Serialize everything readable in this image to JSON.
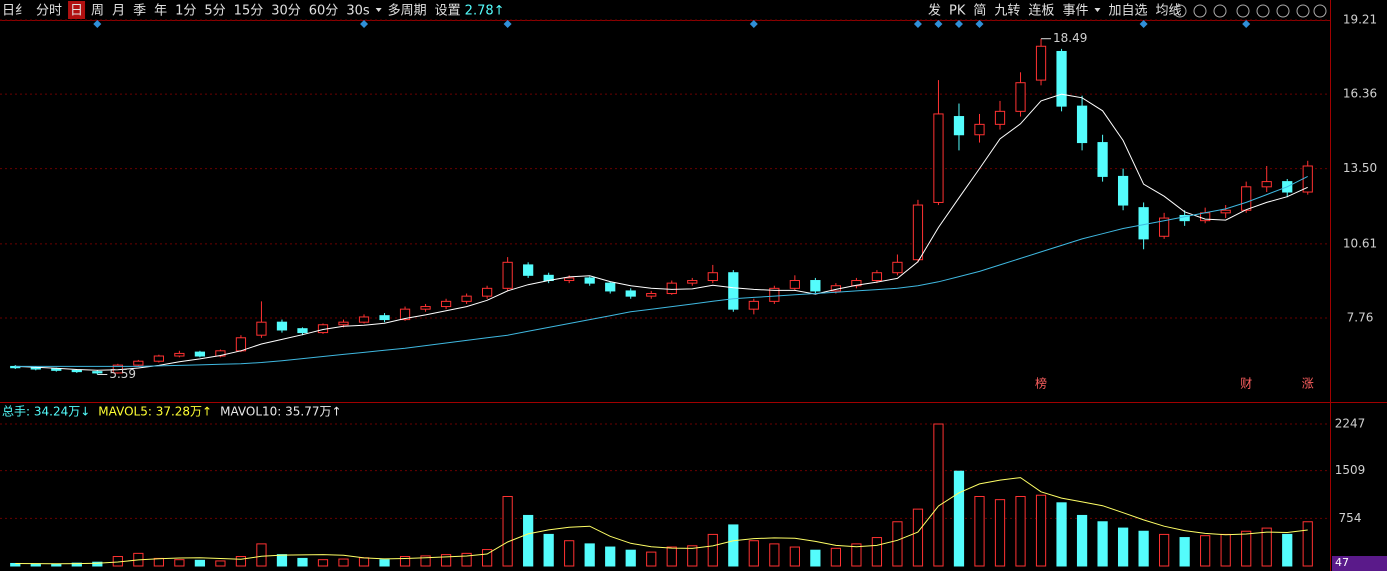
{
  "toolbar": {
    "left": [
      "日纟",
      "分时",
      "日",
      "周",
      "月",
      "季",
      "年",
      "1分",
      "5分",
      "15分",
      "30分",
      "60分",
      "30s",
      "多周期",
      "设置"
    ],
    "partial": "2.78↑",
    "right": [
      "发",
      "PK",
      "简",
      "九转",
      "连板",
      "事件",
      "加自选",
      "均线"
    ]
  },
  "chart_data": [
    {
      "type": "candlestick",
      "up_color": "#ff3232",
      "down_color": "#54fcfc",
      "grid": true,
      "open": [
        5.9,
        5.85,
        5.8,
        5.75,
        5.7,
        5.65,
        5.95,
        6.1,
        6.3,
        6.45,
        6.3,
        6.5,
        7.1,
        7.6,
        7.35,
        7.2,
        7.5,
        7.6,
        7.85,
        7.7,
        8.1,
        8.2,
        8.4,
        8.6,
        8.9,
        9.8,
        9.4,
        9.2,
        9.3,
        9.1,
        8.8,
        8.6,
        8.7,
        9.1,
        9.2,
        9.5,
        8.1,
        8.4,
        8.9,
        9.2,
        8.8,
        9.0,
        9.2,
        9.5,
        10.0,
        12.2,
        15.5,
        14.8,
        15.2,
        15.7,
        16.9,
        18.0,
        15.9,
        14.5,
        13.2,
        12.0,
        10.9,
        11.7,
        11.5,
        11.8,
        11.9,
        12.8,
        13.0,
        12.6
      ],
      "high": [
        5.95,
        5.9,
        5.85,
        5.8,
        5.75,
        6.0,
        6.15,
        6.35,
        6.5,
        6.5,
        6.55,
        7.1,
        8.4,
        7.7,
        7.4,
        7.55,
        7.7,
        7.9,
        7.95,
        8.2,
        8.3,
        8.5,
        8.7,
        9.0,
        10.1,
        9.9,
        9.5,
        9.4,
        9.35,
        9.15,
        8.9,
        8.8,
        9.2,
        9.3,
        9.8,
        9.6,
        8.5,
        9.0,
        9.4,
        9.3,
        9.1,
        9.3,
        9.6,
        10.2,
        12.3,
        16.9,
        16.0,
        15.6,
        16.1,
        17.2,
        18.49,
        18.1,
        16.3,
        14.8,
        13.5,
        12.2,
        11.8,
        11.9,
        12.0,
        12.1,
        13.0,
        13.6,
        13.1,
        13.8
      ],
      "low": [
        5.8,
        5.75,
        5.7,
        5.65,
        5.59,
        5.62,
        5.9,
        6.05,
        6.25,
        6.25,
        6.25,
        6.45,
        7.0,
        7.2,
        7.1,
        7.15,
        7.4,
        7.55,
        7.6,
        7.65,
        8.0,
        8.1,
        8.3,
        8.5,
        8.8,
        9.3,
        9.1,
        9.1,
        9.0,
        8.7,
        8.5,
        8.5,
        8.65,
        9.0,
        9.1,
        8.0,
        7.9,
        8.3,
        8.8,
        8.7,
        8.7,
        8.9,
        9.1,
        9.4,
        9.9,
        12.1,
        14.2,
        14.5,
        15.0,
        15.5,
        16.7,
        15.7,
        14.2,
        13.0,
        11.9,
        10.4,
        10.8,
        11.3,
        11.4,
        11.6,
        11.8,
        12.6,
        12.4,
        12.5
      ],
      "close": [
        5.85,
        5.8,
        5.75,
        5.7,
        5.65,
        5.95,
        6.1,
        6.3,
        6.4,
        6.3,
        6.5,
        7.0,
        7.6,
        7.3,
        7.2,
        7.5,
        7.6,
        7.8,
        7.7,
        8.1,
        8.2,
        8.4,
        8.6,
        8.9,
        9.9,
        9.4,
        9.2,
        9.3,
        9.1,
        8.8,
        8.6,
        8.7,
        9.1,
        9.2,
        9.5,
        8.1,
        8.4,
        8.9,
        9.2,
        8.8,
        9.0,
        9.2,
        9.5,
        9.9,
        12.1,
        15.6,
        14.8,
        15.2,
        15.7,
        16.8,
        18.2,
        15.9,
        14.5,
        13.2,
        12.1,
        10.8,
        11.6,
        11.5,
        11.8,
        11.9,
        12.8,
        13.0,
        12.6,
        13.6
      ],
      "lines": [
        {
          "color": "#ffffff",
          "values": [
            5.9,
            5.87,
            5.83,
            5.78,
            5.75,
            5.77,
            5.84,
            5.94,
            6.08,
            6.19,
            6.32,
            6.5,
            6.76,
            6.94,
            7.12,
            7.32,
            7.44,
            7.48,
            7.56,
            7.74,
            7.88,
            8.04,
            8.2,
            8.44,
            8.8,
            9.04,
            9.2,
            9.34,
            9.38,
            9.16,
            9.0,
            8.9,
            8.86,
            8.88,
            9.02,
            8.92,
            8.86,
            8.82,
            8.82,
            8.68,
            8.86,
            9.02,
            9.14,
            9.28,
            9.92,
            11.24,
            12.38,
            13.5,
            14.64,
            15.22,
            16.1,
            16.36,
            16.22,
            15.72,
            14.58,
            12.9,
            12.44,
            11.84,
            11.56,
            11.52,
            11.92,
            12.2,
            12.42,
            12.78
          ]
        },
        {
          "color": "#3fb8e0",
          "values": [
            5.9,
            5.9,
            5.9,
            5.9,
            5.9,
            5.9,
            5.9,
            5.92,
            5.94,
            5.96,
            5.98,
            6.0,
            6.05,
            6.12,
            6.2,
            6.28,
            6.36,
            6.44,
            6.52,
            6.6,
            6.7,
            6.8,
            6.9,
            7.0,
            7.1,
            7.25,
            7.4,
            7.55,
            7.7,
            7.85,
            8.0,
            8.1,
            8.2,
            8.3,
            8.4,
            8.5,
            8.55,
            8.6,
            8.65,
            8.7,
            8.75,
            8.8,
            8.85,
            8.9,
            9.0,
            9.15,
            9.35,
            9.55,
            9.8,
            10.05,
            10.3,
            10.55,
            10.8,
            11.0,
            11.2,
            11.35,
            11.5,
            11.65,
            11.8,
            11.95,
            12.2,
            12.5,
            12.8,
            13.2
          ]
        }
      ],
      "ylim": [
        4.61,
        19.67
      ],
      "yticks": [
        7.76,
        10.61,
        {
          "value": 13.5,
          "label": "13.50"
        },
        16.36,
        19.21
      ],
      "markers": [
        "榜",
        "财",
        "涨"
      ]
    },
    {
      "type": "bar",
      "values": [
        40,
        35,
        30,
        45,
        60,
        150,
        200,
        120,
        100,
        90,
        80,
        150,
        350,
        180,
        120,
        100,
        110,
        130,
        100,
        150,
        160,
        180,
        200,
        260,
        1100,
        800,
        500,
        400,
        350,
        300,
        250,
        220,
        300,
        320,
        500,
        650,
        400,
        350,
        300,
        250,
        280,
        350,
        450,
        700,
        900,
        2247,
        1500,
        1100,
        1050,
        1100,
        1120,
        1000,
        800,
        700,
        600,
        550,
        500,
        450,
        480,
        500,
        550,
        600,
        500,
        700
      ],
      "line": {
        "color": "#ffff66",
        "values": [
          40,
          38,
          35,
          38,
          42,
          64,
          97,
          115,
          126,
          132,
          118,
          108,
          154,
          172,
          176,
          180,
          170,
          128,
          112,
          118,
          130,
          144,
          158,
          190,
          380,
          508,
          572,
          612,
          630,
          470,
          360,
          304,
          284,
          278,
          318,
          398,
          434,
          444,
          440,
          390,
          326,
          306,
          326,
          406,
          536,
          949,
          1159,
          1299,
          1359,
          1399,
          1174,
          1074,
          1014,
          954,
          844,
          730,
          630,
          560,
          516,
          496,
          506,
          536,
          530,
          570
        ]
      },
      "ylim": [
        0,
        2532
      ],
      "yticks": [
        754,
        1509,
        2247
      ],
      "legend": [
        {
          "text": "总手: 34.24万↓",
          "color": "#54fcfc"
        },
        {
          "text": "MAVOL5: 37.28万↑",
          "color": "#ffff33"
        },
        {
          "text": "MAVOL10: 35.77万↑",
          "color": "#e8e8e8"
        }
      ],
      "corner_label": "47"
    }
  ]
}
